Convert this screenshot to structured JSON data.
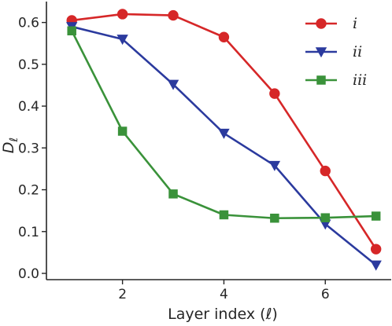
{
  "chart_data": {
    "type": "line",
    "xlabel": "Layer index (ℓ)",
    "ylabel": "D",
    "ylabel_subscript": "ℓ",
    "x": [
      1,
      2,
      3,
      4,
      5,
      6,
      7
    ],
    "xlim": [
      0.5,
      7.3
    ],
    "ylim": [
      -0.015,
      0.65
    ],
    "xticks": [
      2,
      4,
      6
    ],
    "yticks": [
      0.0,
      0.1,
      0.2,
      0.3,
      0.4,
      0.5,
      0.6
    ],
    "ytick_labels": [
      "0.0",
      "0.1",
      "0.2",
      "0.3",
      "0.4",
      "0.5",
      "0.6"
    ],
    "grid": false,
    "legend_position": "top-right",
    "series": [
      {
        "name": "i",
        "marker": "circle",
        "color": "#d62728",
        "values": [
          0.605,
          0.62,
          0.617,
          0.565,
          0.43,
          0.245,
          0.058
        ]
      },
      {
        "name": "ii",
        "marker": "triangle-down",
        "color": "#2b3a9e",
        "values": [
          0.59,
          0.56,
          0.452,
          0.335,
          0.258,
          0.118,
          0.02
        ]
      },
      {
        "name": "iii",
        "marker": "square",
        "color": "#3a923a",
        "values": [
          0.58,
          0.34,
          0.19,
          0.14,
          0.132,
          0.133,
          0.137
        ]
      }
    ]
  }
}
